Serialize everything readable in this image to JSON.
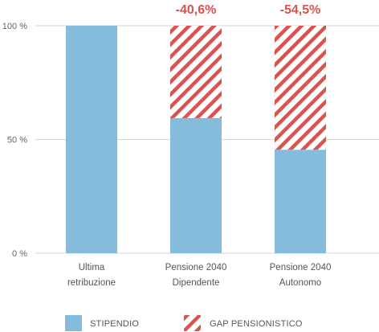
{
  "chart_data": {
    "type": "bar",
    "stacked": true,
    "categories": [
      [
        "Ultima",
        "retribuzione"
      ],
      [
        "Pensione 2040",
        "Dipendente"
      ],
      [
        "Pensione 2040",
        "Autonomo"
      ]
    ],
    "series": [
      {
        "name": "STIPENDIO",
        "values": [
          100,
          59.4,
          45.5
        ],
        "color": "#85bcdc",
        "pattern": "solid"
      },
      {
        "name": "GAP PENSIONISTICO",
        "values": [
          0,
          40.6,
          54.5
        ],
        "color": "#d9534f",
        "pattern": "diagonal-hatch"
      }
    ],
    "annotations": [
      "",
      "-40,6%",
      "-54,5%"
    ],
    "yticks": [
      "0 %",
      "50 %",
      "100 %"
    ],
    "ytick_values": [
      0,
      50,
      100
    ],
    "ylim": [
      0,
      100
    ],
    "grid": true,
    "legend": "bottom"
  }
}
